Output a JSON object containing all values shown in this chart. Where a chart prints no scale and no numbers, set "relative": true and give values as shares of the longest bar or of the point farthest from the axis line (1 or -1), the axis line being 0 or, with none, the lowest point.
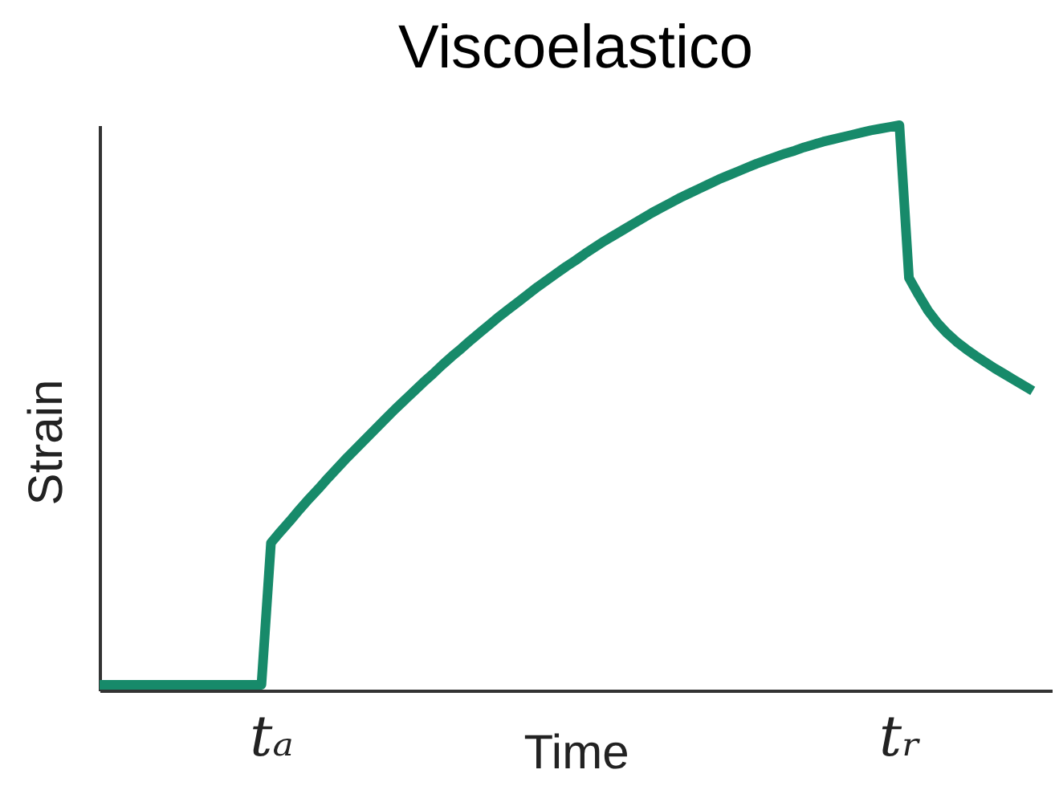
{
  "chart_data": {
    "type": "line",
    "title": "Viscoelastico",
    "xlabel": "Time",
    "ylabel": "Strain",
    "relative": true,
    "categories": [
      null,
      null,
      null,
      null,
      null,
      null,
      null,
      null,
      null,
      null,
      null,
      null,
      null,
      null,
      null,
      null,
      null,
      null,
      "tₐ",
      null,
      null,
      null,
      null,
      null,
      null,
      null,
      null,
      null,
      null,
      null,
      null,
      null,
      null,
      null,
      null,
      null,
      null,
      null,
      null,
      null,
      null,
      null,
      null,
      null,
      null,
      null,
      null,
      null,
      null,
      null,
      null,
      null,
      null,
      null,
      null,
      null,
      null,
      null,
      null,
      null,
      null,
      null,
      null,
      null,
      null,
      null,
      null,
      null,
      null,
      null,
      null,
      null,
      null,
      null,
      null,
      null,
      null,
      null,
      null,
      null,
      null,
      null,
      null,
      null,
      "tᵣ",
      null,
      null,
      null,
      null,
      null,
      null,
      null,
      null,
      null,
      null,
      null,
      null,
      null,
      null,
      null,
      null
    ],
    "series": [
      {
        "color": "#178a6a",
        "values": [
          0.01,
          0.01,
          0.01,
          0.01,
          0.01,
          0.01,
          0.01,
          0.01,
          0.01,
          0.01,
          0.01,
          0.01,
          0.01,
          0.01,
          0.01,
          0.01,
          0.01,
          0.01,
          0.261,
          0.281,
          0.3,
          0.32,
          0.339,
          0.357,
          0.376,
          0.394,
          0.412,
          0.429,
          0.446,
          0.463,
          0.48,
          0.497,
          0.513,
          0.529,
          0.545,
          0.56,
          0.576,
          0.591,
          0.605,
          0.62,
          0.634,
          0.648,
          0.662,
          0.675,
          0.688,
          0.701,
          0.714,
          0.726,
          0.738,
          0.75,
          0.761,
          0.773,
          0.784,
          0.795,
          0.805,
          0.815,
          0.825,
          0.835,
          0.845,
          0.854,
          0.863,
          0.872,
          0.88,
          0.888,
          0.896,
          0.904,
          0.911,
          0.918,
          0.925,
          0.932,
          0.938,
          0.944,
          0.95,
          0.955,
          0.961,
          0.966,
          0.971,
          0.975,
          0.979,
          0.983,
          0.987,
          0.991,
          0.994,
          0.997,
          1,
          0.73,
          0.7,
          0.672,
          0.65,
          0.632,
          0.617,
          0.604,
          0.592,
          0.581,
          0.57,
          0.56,
          0.55,
          0.54,
          0.53,
          null,
          null
        ]
      }
    ]
  }
}
